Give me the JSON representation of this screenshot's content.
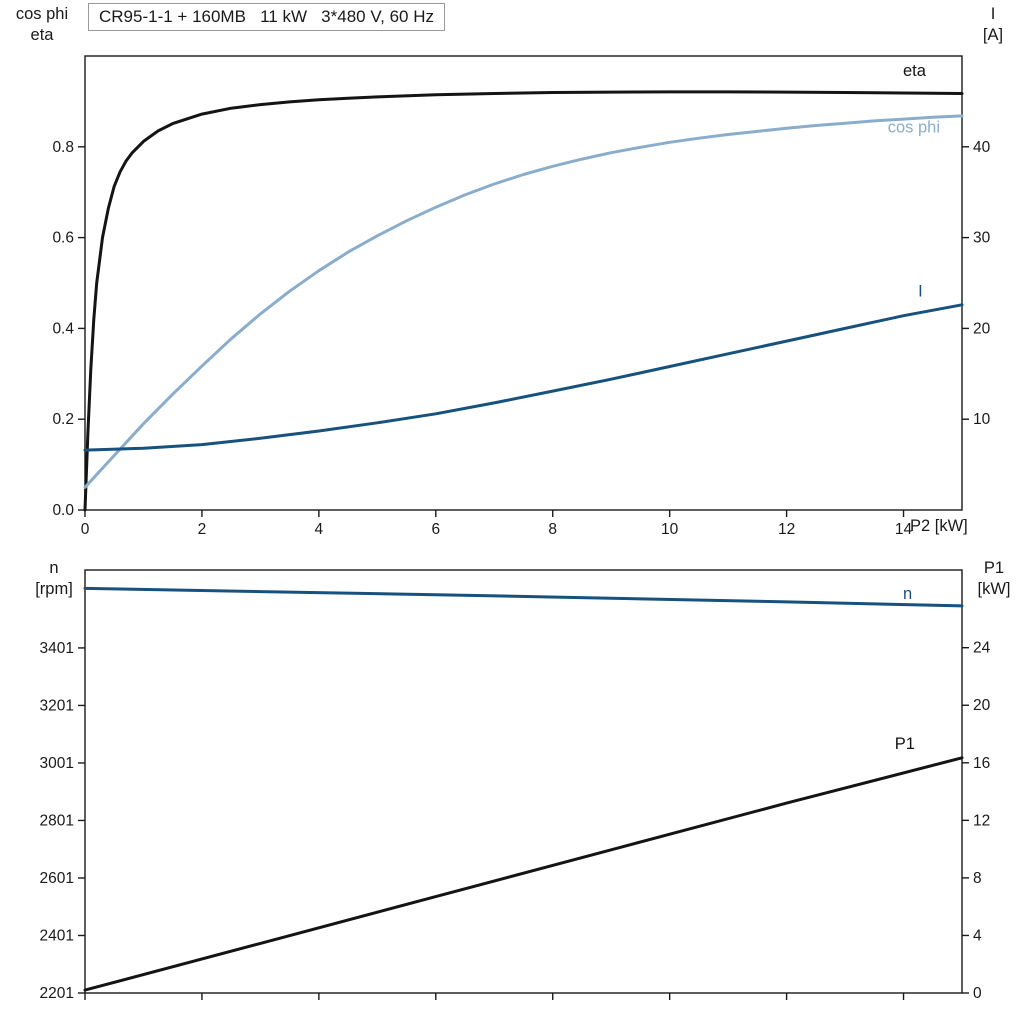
{
  "title": "CR95-1-1 + 160MB   11 kW   3*480 V, 60 Hz",
  "colors": {
    "frame": "#1a1a1a",
    "text": "#1a1a1a",
    "eta_black": "#141414",
    "cos_phi_blue": "#8aadcc",
    "current_blue": "#17517e"
  },
  "axis_corner_labels": {
    "top_left": {
      "line1": "cos phi",
      "line2": "eta"
    },
    "top_right": {
      "line1": "I",
      "line2": "[A]"
    },
    "bottom_left": {
      "line1": "n",
      "line2": "[rpm]"
    },
    "bottom_right": {
      "line1": "P1",
      "line2": "[kW]"
    }
  },
  "chart_data": [
    {
      "type": "line",
      "title": "CR95-1-1 + 160MB   11 kW   3*480 V, 60 Hz",
      "x_axis": {
        "label": "P2 [kW]",
        "range": [
          0,
          15
        ],
        "ticks": [
          {
            "v": 0,
            "label": "0"
          },
          {
            "v": 2,
            "label": "2"
          },
          {
            "v": 4,
            "label": "4"
          },
          {
            "v": 6,
            "label": "6"
          },
          {
            "v": 8,
            "label": "8"
          },
          {
            "v": 10,
            "label": "10"
          },
          {
            "v": 12,
            "label": "12"
          },
          {
            "v": 14,
            "label": "14"
          }
        ]
      },
      "left_axis": {
        "label": "cos phi / eta",
        "range": [
          0,
          1.0
        ],
        "ticks": [
          {
            "v": 0.0,
            "label": "0.0"
          },
          {
            "v": 0.2,
            "label": "0.2"
          },
          {
            "v": 0.4,
            "label": "0.4"
          },
          {
            "v": 0.6,
            "label": "0.6"
          },
          {
            "v": 0.8,
            "label": "0.8"
          }
        ]
      },
      "right_axis": {
        "label": "I [A]",
        "range": [
          0,
          50
        ],
        "ticks": [
          {
            "v": 10,
            "label": "10"
          },
          {
            "v": 20,
            "label": "20"
          },
          {
            "v": 30,
            "label": "30"
          },
          {
            "v": 40,
            "label": "40"
          }
        ]
      },
      "series": [
        {
          "name": "eta",
          "axis": "left",
          "color": "#141414",
          "width": 3,
          "label": {
            "text": "eta",
            "x": 13.99,
            "y": 0.956
          },
          "points": [
            [
              0,
              0
            ],
            [
              0.05,
              0.17
            ],
            [
              0.1,
              0.31
            ],
            [
              0.15,
              0.42
            ],
            [
              0.2,
              0.5
            ],
            [
              0.3,
              0.6
            ],
            [
              0.4,
              0.665
            ],
            [
              0.5,
              0.713
            ],
            [
              0.6,
              0.745
            ],
            [
              0.7,
              0.768
            ],
            [
              0.8,
              0.786
            ],
            [
              1.0,
              0.812
            ],
            [
              1.25,
              0.835
            ],
            [
              1.5,
              0.851
            ],
            [
              2,
              0.872
            ],
            [
              2.5,
              0.885
            ],
            [
              3,
              0.893
            ],
            [
              3.5,
              0.899
            ],
            [
              4,
              0.9035
            ],
            [
              4.5,
              0.907
            ],
            [
              5,
              0.91
            ],
            [
              6,
              0.9145
            ],
            [
              7,
              0.9175
            ],
            [
              8,
              0.9195
            ],
            [
              9,
              0.9205
            ],
            [
              10,
              0.921
            ],
            [
              11,
              0.921
            ],
            [
              12,
              0.9205
            ],
            [
              13,
              0.9195
            ],
            [
              14,
              0.9185
            ],
            [
              15,
              0.9175
            ]
          ]
        },
        {
          "name": "cos phi",
          "axis": "left",
          "color": "#8aadcc",
          "width": 3,
          "label": {
            "text": "cos phi",
            "x": 13.73,
            "y": 0.832
          },
          "points": [
            [
              0,
              0.05
            ],
            [
              0.5,
              0.12
            ],
            [
              1,
              0.19
            ],
            [
              1.5,
              0.255
            ],
            [
              2,
              0.317
            ],
            [
              2.5,
              0.377
            ],
            [
              3,
              0.432
            ],
            [
              3.5,
              0.482
            ],
            [
              4,
              0.527
            ],
            [
              4.5,
              0.568
            ],
            [
              5,
              0.604
            ],
            [
              5.5,
              0.637
            ],
            [
              6,
              0.667
            ],
            [
              6.5,
              0.694
            ],
            [
              7,
              0.718
            ],
            [
              7.5,
              0.739
            ],
            [
              8,
              0.757
            ],
            [
              8.5,
              0.773
            ],
            [
              9,
              0.787
            ],
            [
              9.5,
              0.799
            ],
            [
              10,
              0.81
            ],
            [
              10.5,
              0.819
            ],
            [
              11,
              0.827
            ],
            [
              11.5,
              0.834
            ],
            [
              12,
              0.841
            ],
            [
              12.5,
              0.847
            ],
            [
              13,
              0.852
            ],
            [
              13.5,
              0.857
            ],
            [
              14,
              0.861
            ],
            [
              14.5,
              0.865
            ],
            [
              15,
              0.868
            ]
          ]
        },
        {
          "name": "I",
          "axis": "right",
          "color": "#17517e",
          "width": 3,
          "label": {
            "text": "I",
            "x": 14.25,
            "y": 23.5
          },
          "points": [
            [
              0,
              6.6
            ],
            [
              1,
              6.8
            ],
            [
              2,
              7.2
            ],
            [
              3,
              7.9
            ],
            [
              4,
              8.7
            ],
            [
              5,
              9.6
            ],
            [
              6,
              10.6
            ],
            [
              7,
              11.8
            ],
            [
              8,
              13.1
            ],
            [
              9,
              14.4
            ],
            [
              10,
              15.8
            ],
            [
              11,
              17.2
            ],
            [
              12,
              18.6
            ],
            [
              13,
              20.0
            ],
            [
              14,
              21.4
            ],
            [
              15,
              22.6
            ]
          ]
        }
      ]
    },
    {
      "type": "line",
      "title": "Speed and input power",
      "x_axis": {
        "label": "",
        "range": [
          0,
          15
        ],
        "ticks": [
          {
            "v": 0,
            "label": ""
          },
          {
            "v": 2,
            "label": ""
          },
          {
            "v": 4,
            "label": ""
          },
          {
            "v": 6,
            "label": ""
          },
          {
            "v": 8,
            "label": ""
          },
          {
            "v": 10,
            "label": ""
          },
          {
            "v": 12,
            "label": ""
          },
          {
            "v": 14,
            "label": ""
          }
        ]
      },
      "left_axis": {
        "label": "n [rpm]",
        "range": [
          2201,
          3672
        ],
        "ticks": [
          {
            "v": 2201,
            "label": "2201"
          },
          {
            "v": 2401,
            "label": "2401"
          },
          {
            "v": 2601,
            "label": "2601"
          },
          {
            "v": 2801,
            "label": "2801"
          },
          {
            "v": 3001,
            "label": "3001"
          },
          {
            "v": 3201,
            "label": "3201"
          },
          {
            "v": 3401,
            "label": "3401"
          }
        ]
      },
      "right_axis": {
        "label": "P1 [kW]",
        "range": [
          0,
          29.4
        ],
        "ticks": [
          {
            "v": 0,
            "label": "0"
          },
          {
            "v": 4,
            "label": "4"
          },
          {
            "v": 8,
            "label": "8"
          },
          {
            "v": 12,
            "label": "12"
          },
          {
            "v": 16,
            "label": "16"
          },
          {
            "v": 20,
            "label": "20"
          },
          {
            "v": 24,
            "label": "24"
          }
        ]
      },
      "series": [
        {
          "name": "n",
          "axis": "left",
          "color": "#17517e",
          "width": 3,
          "label": {
            "text": "n",
            "x": 13.99,
            "y": 3572
          },
          "points": [
            [
              0,
              3608
            ],
            [
              3,
              3597
            ],
            [
              6,
              3586
            ],
            [
              9,
              3574
            ],
            [
              12,
              3561
            ],
            [
              15,
              3547
            ]
          ]
        },
        {
          "name": "P1",
          "axis": "right",
          "color": "#141414",
          "width": 3,
          "label": {
            "text": "P1",
            "x": 13.85,
            "y": 16.95
          },
          "points": [
            [
              0,
              0.2
            ],
            [
              3,
              3.45
            ],
            [
              6,
              6.7
            ],
            [
              9,
              9.95
            ],
            [
              12,
              13.2
            ],
            [
              15,
              16.35
            ]
          ]
        }
      ]
    }
  ]
}
